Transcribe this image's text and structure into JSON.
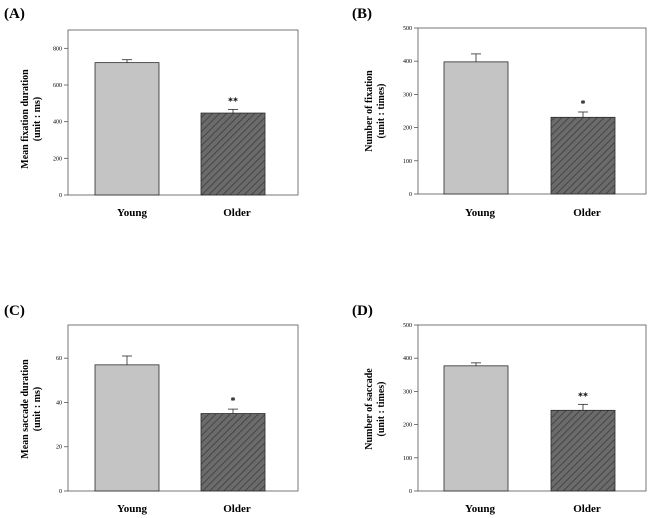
{
  "chart_data": [
    {
      "type": "bar",
      "panel_label": "(A)",
      "categories": [
        "Young",
        "Older"
      ],
      "values": [
        722,
        447
      ],
      "errors": [
        16,
        20
      ],
      "significance": [
        "",
        "**"
      ],
      "ylabel_lines": [
        "Mean fixation duration",
        "(unit : ms)"
      ],
      "ylim": [
        0,
        900
      ],
      "yticks": [
        0,
        200,
        400,
        600,
        800
      ]
    },
    {
      "type": "bar",
      "panel_label": "(B)",
      "categories": [
        "Young",
        "Older"
      ],
      "values": [
        398,
        231
      ],
      "errors": [
        24,
        16
      ],
      "significance": [
        "",
        "*"
      ],
      "ylabel_lines": [
        "Number of fixation",
        "(unit : times)"
      ],
      "ylim": [
        0,
        500
      ],
      "yticks": [
        0,
        100,
        200,
        300,
        400,
        500
      ]
    },
    {
      "type": "bar",
      "panel_label": "(C)",
      "categories": [
        "Young",
        "Older"
      ],
      "values": [
        57,
        35
      ],
      "errors": [
        4,
        2
      ],
      "significance": [
        "",
        "*"
      ],
      "ylabel_lines": [
        "Mean saccade duration",
        "(unit : ms)"
      ],
      "ylim": [
        0,
        75
      ],
      "yticks": [
        0,
        20,
        40,
        60
      ]
    },
    {
      "type": "bar",
      "panel_label": "(D)",
      "categories": [
        "Young",
        "Older"
      ],
      "values": [
        377,
        243
      ],
      "errors": [
        9,
        18
      ],
      "significance": [
        "",
        "**"
      ],
      "ylabel_lines": [
        "Number of saccade",
        "(unit : times)"
      ],
      "ylim": [
        0,
        500
      ],
      "yticks": [
        0,
        100,
        200,
        300,
        400,
        500
      ]
    }
  ],
  "colors": {
    "young_bar": "#c4c4c4",
    "older_bar": "#6b6b6b",
    "older_hatch": "#3c3c3c",
    "axis": "#555555",
    "bar_edge": "#2a2a2a"
  }
}
